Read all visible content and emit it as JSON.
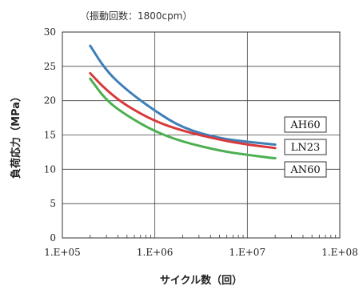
{
  "chart_data": {
    "type": "line",
    "title": "",
    "subtitle": "（振動回数：1800cpm）",
    "xlabel": "サイクル数（回）",
    "ylabel": "負荷応力（MPa）",
    "x_scale": "log",
    "xlim": [
      100000,
      100000000
    ],
    "ylim": [
      0,
      30
    ],
    "x_ticks": [
      "1.E+05",
      "1.E+06",
      "1.E+07",
      "1.E+08"
    ],
    "y_ticks": [
      "0",
      "5",
      "10",
      "15",
      "20",
      "25",
      "30"
    ],
    "grid": true,
    "series": [
      {
        "name": "AH60",
        "color": "#3f7fb8",
        "points": [
          [
            200000,
            28.0
          ],
          [
            300000,
            24.3
          ],
          [
            500000,
            21.5
          ],
          [
            1000000,
            18.5
          ],
          [
            2000000,
            16.0
          ],
          [
            5000000,
            14.5
          ],
          [
            10000000,
            14.0
          ],
          [
            20000000,
            13.6
          ]
        ]
      },
      {
        "name": "LN23",
        "color": "#d9393c",
        "points": [
          [
            200000,
            24.0
          ],
          [
            300000,
            21.5
          ],
          [
            500000,
            19.2
          ],
          [
            1000000,
            17.0
          ],
          [
            2000000,
            15.6
          ],
          [
            5000000,
            14.3
          ],
          [
            10000000,
            13.6
          ],
          [
            20000000,
            13.1
          ]
        ]
      },
      {
        "name": "AN60",
        "color": "#4caf50",
        "points": [
          [
            200000,
            23.2
          ],
          [
            300000,
            20.0
          ],
          [
            500000,
            17.8
          ],
          [
            1000000,
            15.5
          ],
          [
            2000000,
            14.0
          ],
          [
            5000000,
            12.7
          ],
          [
            10000000,
            12.1
          ],
          [
            20000000,
            11.6
          ]
        ]
      }
    ]
  }
}
